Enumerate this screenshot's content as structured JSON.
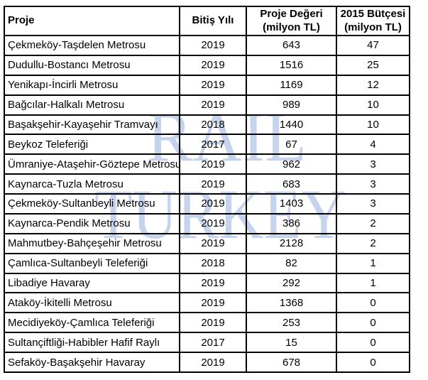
{
  "watermark": {
    "words": [
      "RAIL",
      "TURKEY"
    ],
    "color": "#c6d3ec"
  },
  "styles": {
    "border_color": "#000000",
    "text_color": "#000000",
    "background": "#ffffff"
  },
  "chart_data": {
    "type": "table",
    "title": "",
    "columns": [
      "Proje",
      "Bitiş Yılı",
      "Proje Değeri (milyon TL)",
      "2015 Bütçesi (milyon TL)"
    ],
    "header_lines": [
      [
        "Proje",
        ""
      ],
      [
        "Bitiş Yılı",
        ""
      ],
      [
        "Proje Değeri",
        "(milyon TL)"
      ],
      [
        "2015 Bütçesi",
        "(milyon TL)"
      ]
    ],
    "rows": [
      [
        "Çekmeköy-Taşdelen Metrosu",
        "2019",
        "643",
        "47"
      ],
      [
        "Dudullu-Bostancı Metrosu",
        "2019",
        "1516",
        "25"
      ],
      [
        "Yenikapı-İncirli Metrosu",
        "2019",
        "1169",
        "12"
      ],
      [
        "Bağcılar-Halkalı Metrosu",
        "2019",
        "989",
        "10"
      ],
      [
        "Başakşehir-Kayaşehir Tramvayı",
        "2018",
        "1440",
        "10"
      ],
      [
        "Beykoz Teleferiği",
        "2017",
        "67",
        "4"
      ],
      [
        "Ümraniye-Ataşehir-Göztepe Metrosu",
        "2019",
        "962",
        "3"
      ],
      [
        "Kaynarca-Tuzla Metrosu",
        "2019",
        "683",
        "3"
      ],
      [
        "Çekmeköy-Sultanbeyli Metrosu",
        "2019",
        "1403",
        "3"
      ],
      [
        "Kaynarca-Pendik Metrosu",
        "2019",
        "386",
        "2"
      ],
      [
        "Mahmutbey-Bahçeşehir Metrosu",
        "2019",
        "2128",
        "2"
      ],
      [
        "Çamlıca-Sultanbeyli Teleferiği",
        "2018",
        "82",
        "1"
      ],
      [
        "Libadiye Havaray",
        "2019",
        "292",
        "1"
      ],
      [
        "Ataköy-İkitelli Metrosu",
        "2019",
        "1368",
        "0"
      ],
      [
        "Mecidiyeköy-Çamlıca Teleferiği",
        "2019",
        "253",
        "0"
      ],
      [
        "Sultançiftliği-Habibler Hafif Raylı",
        "2017",
        "15",
        "0"
      ],
      [
        "Sefaköy-Başakşehir Havaray",
        "2019",
        "678",
        "0"
      ]
    ]
  }
}
